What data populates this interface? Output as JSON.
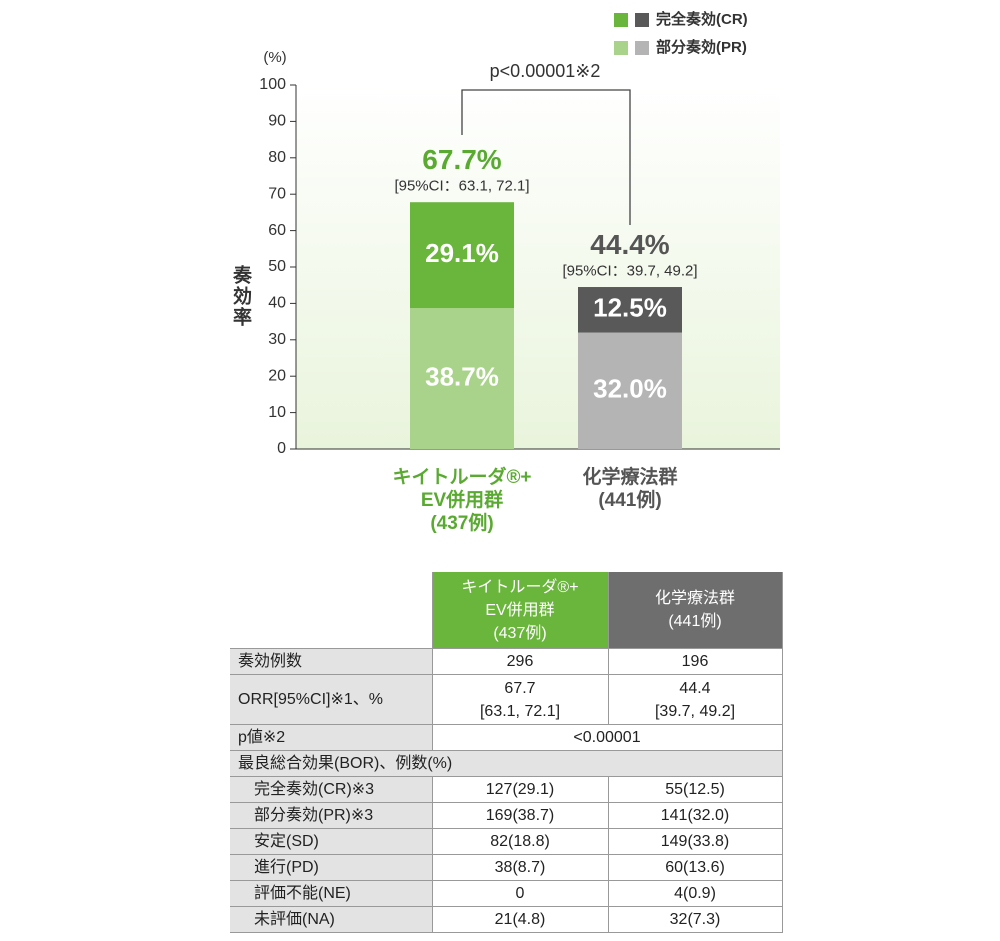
{
  "chart_data": {
    "type": "stacked_bar",
    "y_label": "奏効率",
    "y_unit": "(%)",
    "ylim": [
      0,
      100
    ],
    "yticks": [
      0,
      10,
      20,
      30,
      40,
      50,
      60,
      70,
      80,
      90,
      100
    ],
    "categories": [
      "キイトルーダ®+\nEV併用群\n(437例)",
      "化学療法群\n(441例)"
    ],
    "category_colors": [
      "#5aaa32",
      "#555555"
    ],
    "series": [
      {
        "name": "完全奏効(CR)",
        "colors": [
          "#6ab53c",
          "#595959"
        ],
        "values": [
          29.1,
          12.5
        ],
        "value_labels": [
          "29.1%",
          "12.5%"
        ]
      },
      {
        "name": "部分奏効(PR)",
        "colors": [
          "#a9d38a",
          "#b4b4b4"
        ],
        "values": [
          38.7,
          32.0
        ],
        "value_labels": [
          "38.7%",
          "32.0%"
        ]
      }
    ],
    "totals": [
      67.7,
      44.4
    ],
    "total_labels": [
      "67.7%",
      "44.4%"
    ],
    "ci_labels": [
      "[95%CI：63.1, 72.1]",
      "[95%CI：39.7, 49.2]"
    ],
    "annotation": "p<0.00001※2"
  },
  "table": {
    "header": [
      "キイトルーダ®+\nEV併用群\n(437例)",
      "化学療法群\n(441例)"
    ],
    "rows": [
      [
        "奏効例数",
        "296",
        "196"
      ],
      [
        "ORR[95%CI]※1、%",
        "67.7\n[63.1, 72.1]",
        "44.4\n[39.7, 49.2]"
      ],
      [
        "p値※2",
        "<0.00001"
      ],
      [
        "最良総合効果(BOR)、例数(%)"
      ],
      [
        "完全奏効(CR)※3",
        "127(29.1)",
        "55(12.5)"
      ],
      [
        "部分奏効(PR)※3",
        "169(38.7)",
        "141(32.0)"
      ],
      [
        "安定(SD)",
        "82(18.8)",
        "149(33.8)"
      ],
      [
        "進行(PD)",
        "38(8.7)",
        "60(13.6)"
      ],
      [
        "評価不能(NE)",
        "0",
        "4(0.9)"
      ],
      [
        "未評価(NA)",
        "21(4.8)",
        "32(7.3)"
      ]
    ]
  }
}
